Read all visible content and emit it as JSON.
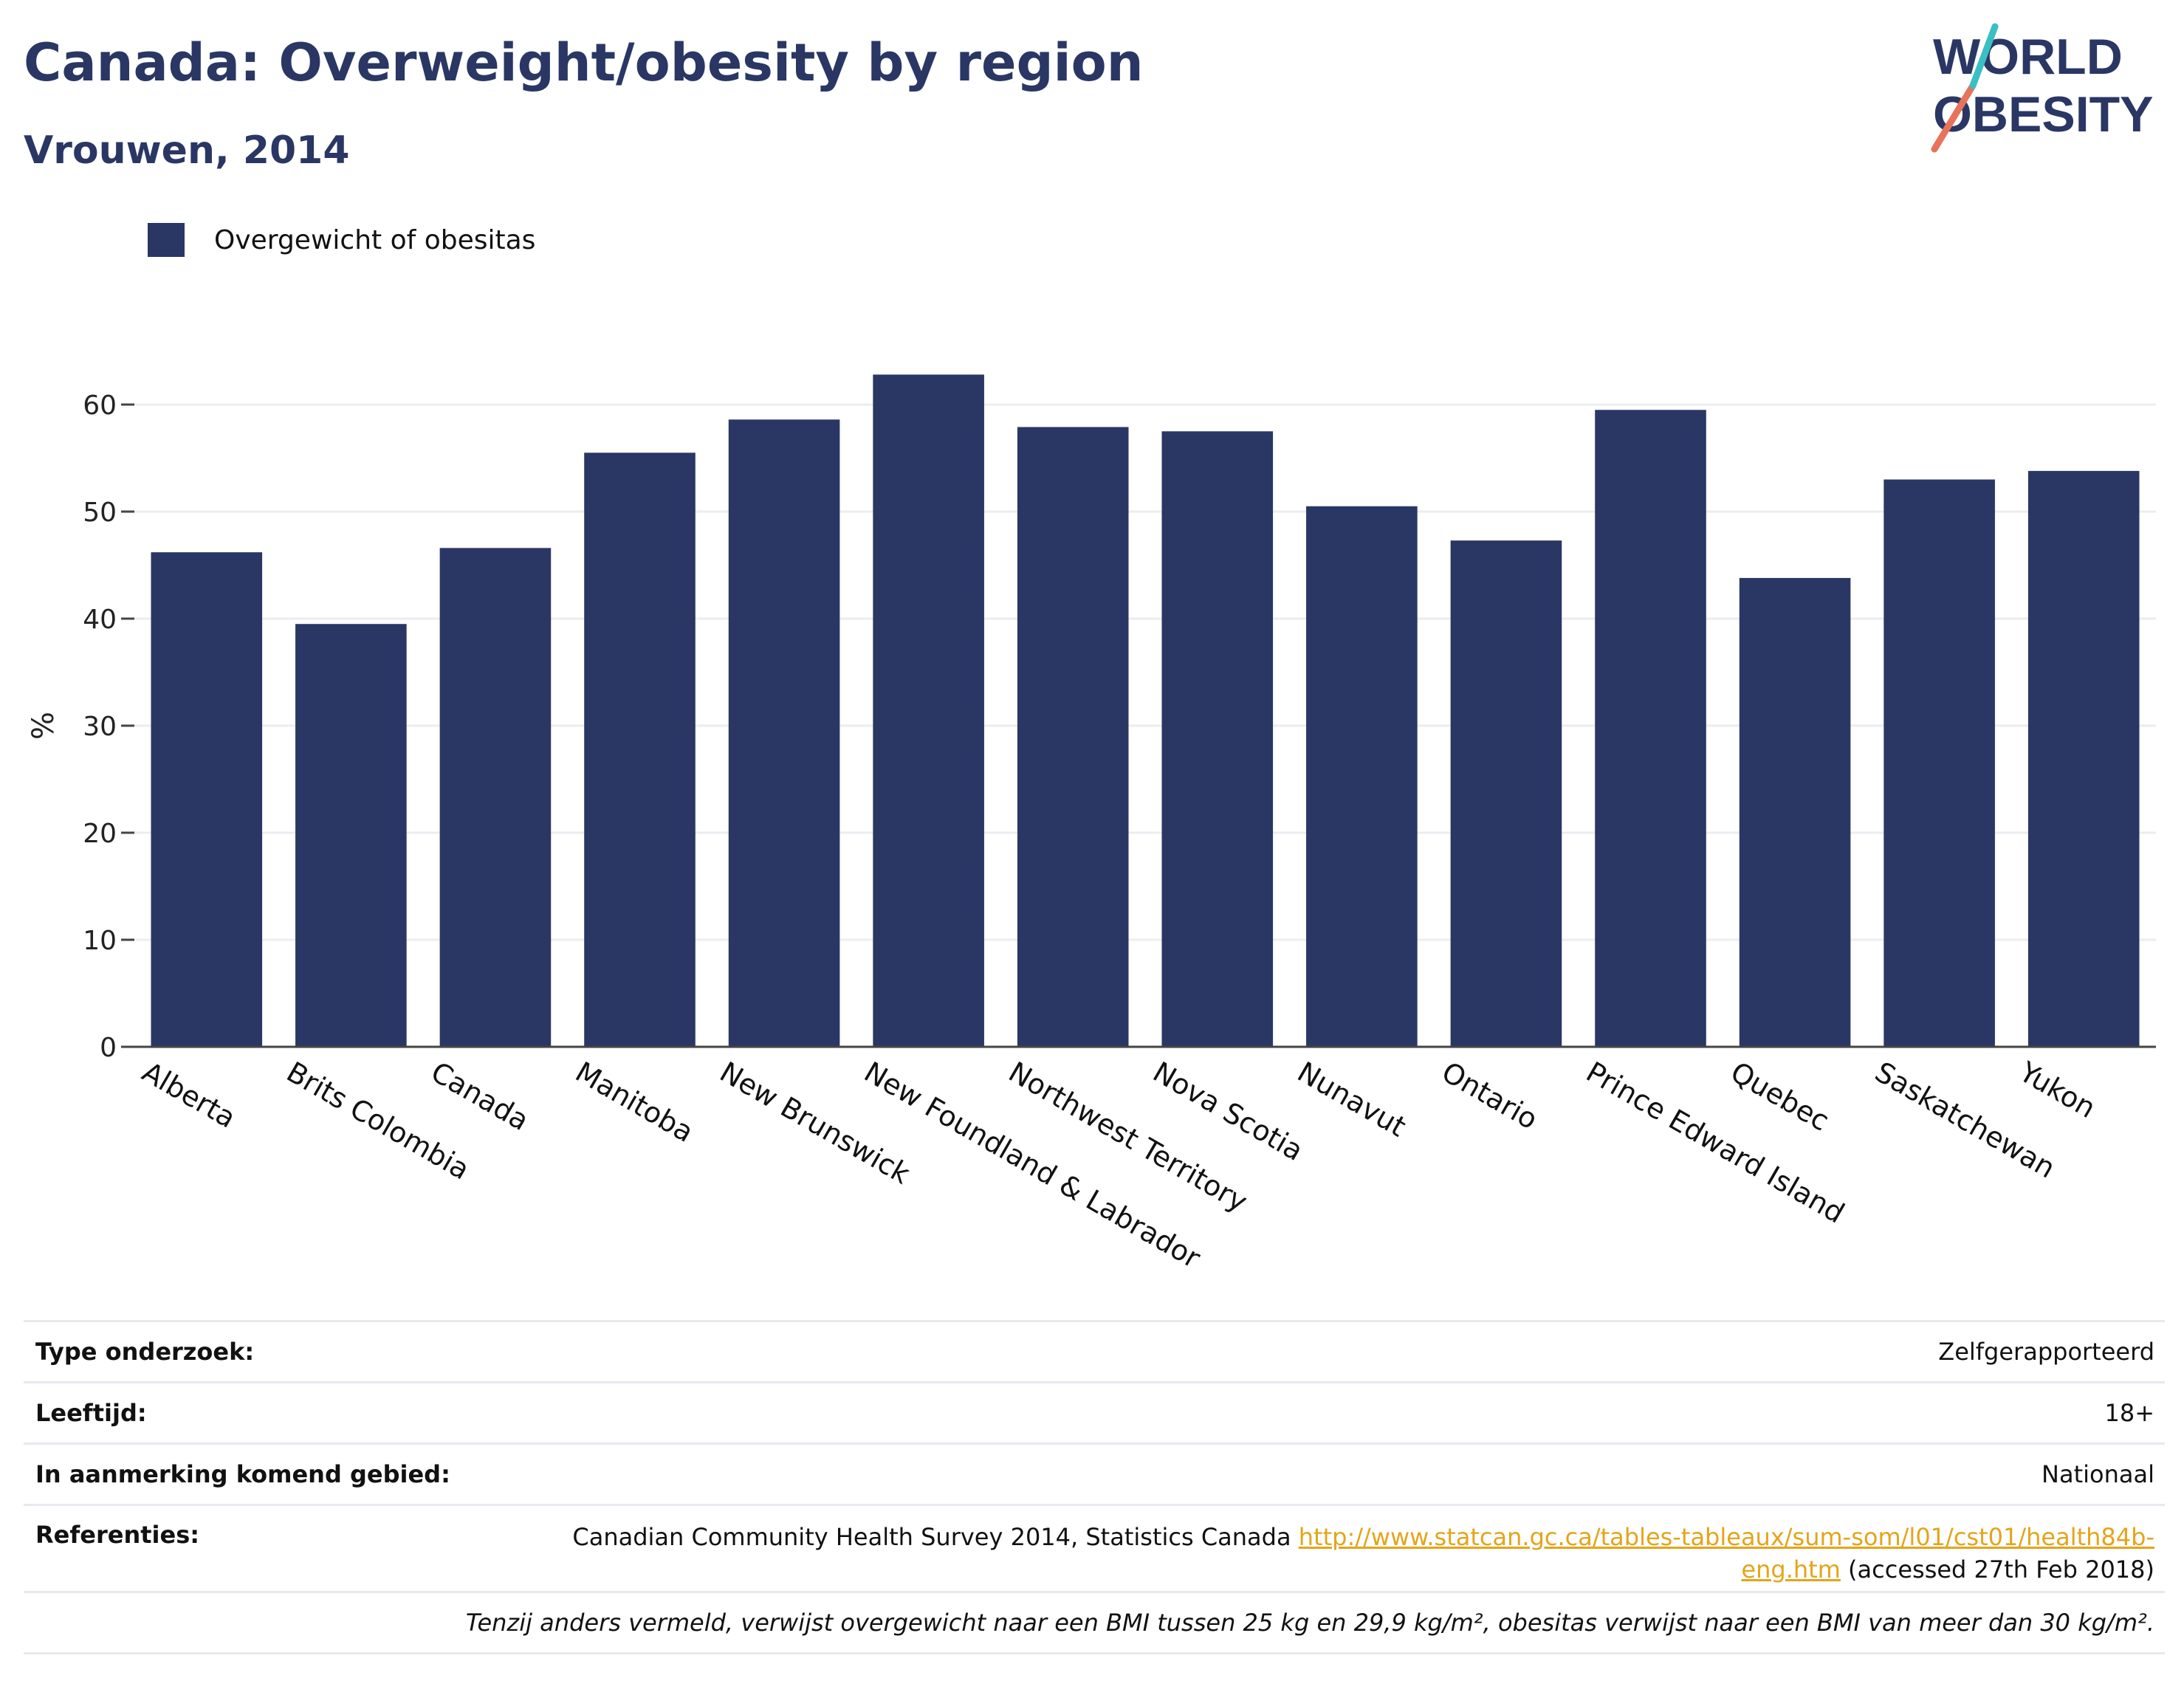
{
  "header": {
    "title": "Canada: Overweight/obesity by region",
    "subtitle": "Vrouwen, 2014"
  },
  "logo": {
    "line1": "WORLD",
    "line2": "OBESITY",
    "colors": [
      "#2a3764",
      "#e8735a",
      "#3bbfc4"
    ]
  },
  "chart_data": {
    "type": "bar",
    "categories": [
      "Alberta",
      "Brits Colombia",
      "Canada",
      "Manitoba",
      "New Brunswick",
      "New Foundland & Labrador",
      "Northwest Territory",
      "Nova Scotia",
      "Nunavut",
      "Ontario",
      "Prince Edward Island",
      "Quebec",
      "Saskatchewan",
      "Yukon"
    ],
    "series": [
      {
        "name": "Overgewicht of obesitas",
        "color": "#2a3764",
        "values": [
          46.2,
          39.5,
          46.6,
          55.5,
          58.6,
          62.8,
          57.9,
          57.5,
          50.5,
          47.3,
          59.5,
          43.8,
          53.0,
          53.8
        ]
      }
    ],
    "ylabel": "%",
    "ylim": [
      0,
      65
    ],
    "yticks": [
      0,
      10,
      20,
      30,
      40,
      50,
      60
    ],
    "grid": true,
    "legend_position": "top-left"
  },
  "meta": {
    "survey_type_label": "Type onderzoek:",
    "survey_type_value": "Zelfgerapporteerd",
    "age_label": "Leeftijd:",
    "age_value": "18+",
    "area_label": "In aanmerking komend gebied:",
    "area_value": "Nationaal",
    "references_label": "Referenties:",
    "references_text": "Canadian Community Health Survey 2014, Statistics Canada ",
    "references_link_1": "http://www.statcan.gc.ca/tables-tableaux/sum-som/l01/cst01/health84b-",
    "references_link_2": "eng.htm",
    "references_suffix": " (accessed 27th Feb 2018)",
    "note": "Tenzij anders vermeld, verwijst overgewicht naar een BMI tussen 25 kg en 29,9 kg/m², obesitas verwijst naar een BMI van meer dan 30 kg/m²."
  }
}
